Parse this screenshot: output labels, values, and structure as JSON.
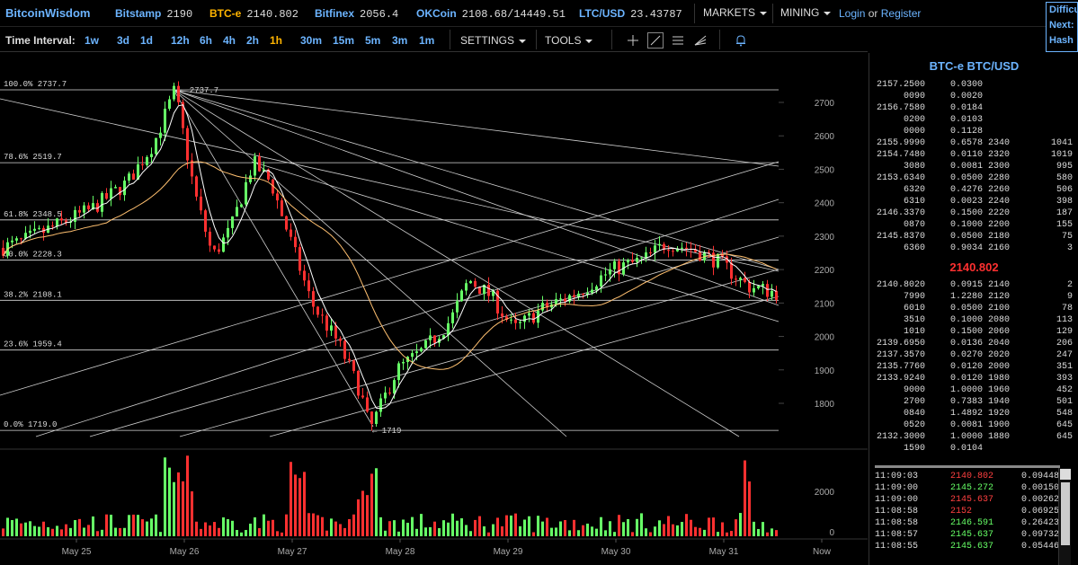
{
  "header": {
    "logo": "BitcoinWisdom",
    "tickers": [
      {
        "exchange": "Bitstamp",
        "price": "2190",
        "active": false
      },
      {
        "exchange": "BTC-e",
        "price": "2140.802",
        "active": true
      },
      {
        "exchange": "Bitfinex",
        "price": "2056.4",
        "active": false
      },
      {
        "exchange": "OKCoin",
        "price": "2108.68/14449.51",
        "active": false
      },
      {
        "exchange": "LTC/USD",
        "price": "23.43787",
        "active": false
      }
    ],
    "markets_label": "MARKETS",
    "mining_label": "MINING",
    "login_label": "Login",
    "or_label": "or",
    "register_label": "Register",
    "difficulty_box": [
      "Difficu",
      "Next:",
      "Hash"
    ]
  },
  "toolbar": {
    "time_interval_label": "Time Interval:",
    "intervals": [
      "1w",
      "3d",
      "1d",
      "12h",
      "6h",
      "4h",
      "2h",
      "1h",
      "30m",
      "15m",
      "5m",
      "3m",
      "1m"
    ],
    "active_interval": "1h",
    "settings_label": "SETTINGS",
    "tools_label": "TOOLS",
    "tool_icons": [
      "crosshair-icon",
      "trendline-icon",
      "horizontal-lines-icon",
      "fan-icon",
      "alert-bell-icon"
    ]
  },
  "chart_data": {
    "type": "candlestick",
    "y_ticks": [
      "2700",
      "2600",
      "2500",
      "2400",
      "2300",
      "2200",
      "2100",
      "2000",
      "1900",
      "1800"
    ],
    "x_ticks": [
      "May 25",
      "May 26",
      "May 27",
      "May 28",
      "May 29",
      "May 30",
      "May 31",
      "Now"
    ],
    "volume_ticks": [
      "2000",
      "0"
    ],
    "fib_levels": [
      {
        "label": "100.0% 2737.7",
        "value": 2737.7
      },
      {
        "label": "78.6% 2519.7",
        "value": 2519.7
      },
      {
        "label": "61.8% 2348.5",
        "value": 2348.5
      },
      {
        "label": "50.0% 2228.3",
        "value": 2228.3
      },
      {
        "label": "38.2% 2108.1",
        "value": 2108.1
      },
      {
        "label": "23.6% 1959.4",
        "value": 1959.4
      },
      {
        "label": "0.0% 1719.0",
        "value": 1719.0
      }
    ],
    "annotations": [
      "2737.7",
      "1719"
    ],
    "ylim": [
      1680,
      2780
    ],
    "colors": {
      "up": "#66ff66",
      "down": "#ff3030",
      "ma_fast": "#ffffff",
      "ma_slow": "#ffc070"
    }
  },
  "orderbook": {
    "title": "BTC-e BTC/USD",
    "asks": [
      [
        "2157.2500",
        "0.0300",
        "",
        ""
      ],
      [
        "0090",
        "0.0020",
        "",
        ""
      ],
      [
        "2156.7580",
        "0.0184",
        "",
        ""
      ],
      [
        "0200",
        "0.0103",
        "",
        ""
      ],
      [
        "0000",
        "0.1128",
        "",
        ""
      ],
      [
        "2155.9990",
        "0.6578",
        "2340",
        "1041"
      ],
      [
        "2154.7480",
        "0.0110",
        "2320",
        "1019"
      ],
      [
        "3080",
        "0.0081",
        "2300",
        "995"
      ],
      [
        "2153.6340",
        "0.0500",
        "2280",
        "580"
      ],
      [
        "6320",
        "0.4276",
        "2260",
        "506"
      ],
      [
        "6310",
        "0.0023",
        "2240",
        "398"
      ],
      [
        "2146.3370",
        "0.1500",
        "2220",
        "187"
      ],
      [
        "0870",
        "0.1000",
        "2200",
        "155"
      ],
      [
        "2145.8370",
        "0.0500",
        "2180",
        "75"
      ],
      [
        "6360",
        "0.9034",
        "2160",
        "3"
      ]
    ],
    "last_price": "2140.802",
    "bids": [
      [
        "2140.8020",
        "0.0915",
        "2140",
        "2"
      ],
      [
        "7990",
        "1.2280",
        "2120",
        "9"
      ],
      [
        "6010",
        "0.0500",
        "2100",
        "78"
      ],
      [
        "3510",
        "0.1000",
        "2080",
        "113"
      ],
      [
        "1010",
        "0.1500",
        "2060",
        "129"
      ],
      [
        "2139.6950",
        "0.0136",
        "2040",
        "206"
      ],
      [
        "2137.3570",
        "0.0270",
        "2020",
        "247"
      ],
      [
        "2135.7760",
        "0.0120",
        "2000",
        "351"
      ],
      [
        "2133.9240",
        "0.0120",
        "1980",
        "393"
      ],
      [
        "9000",
        "1.0000",
        "1960",
        "452"
      ],
      [
        "2700",
        "0.7383",
        "1940",
        "501"
      ],
      [
        "0840",
        "1.4892",
        "1920",
        "548"
      ],
      [
        "0520",
        "0.0081",
        "1900",
        "645"
      ],
      [
        "2132.3000",
        "1.0000",
        "1880",
        "645"
      ],
      [
        "1590",
        "0.0104",
        "",
        ""
      ]
    ]
  },
  "trades": [
    {
      "time": "11:09:03",
      "price": "2140.802",
      "amount": "0.09448",
      "dir": "dn"
    },
    {
      "time": "11:09:00",
      "price": "2145.272",
      "amount": "0.00150",
      "dir": "up"
    },
    {
      "time": "11:09:00",
      "price": "2145.637",
      "amount": "0.00262",
      "dir": "dn"
    },
    {
      "time": "11:08:58",
      "price": "2152",
      "amount": "0.06925",
      "dir": "dn"
    },
    {
      "time": "11:08:58",
      "price": "2146.591",
      "amount": "0.26423",
      "dir": "up"
    },
    {
      "time": "11:08:57",
      "price": "2145.637",
      "amount": "0.09732",
      "dir": "up"
    },
    {
      "time": "11:08:55",
      "price": "2145.637",
      "amount": "0.05446",
      "dir": "up"
    }
  ]
}
